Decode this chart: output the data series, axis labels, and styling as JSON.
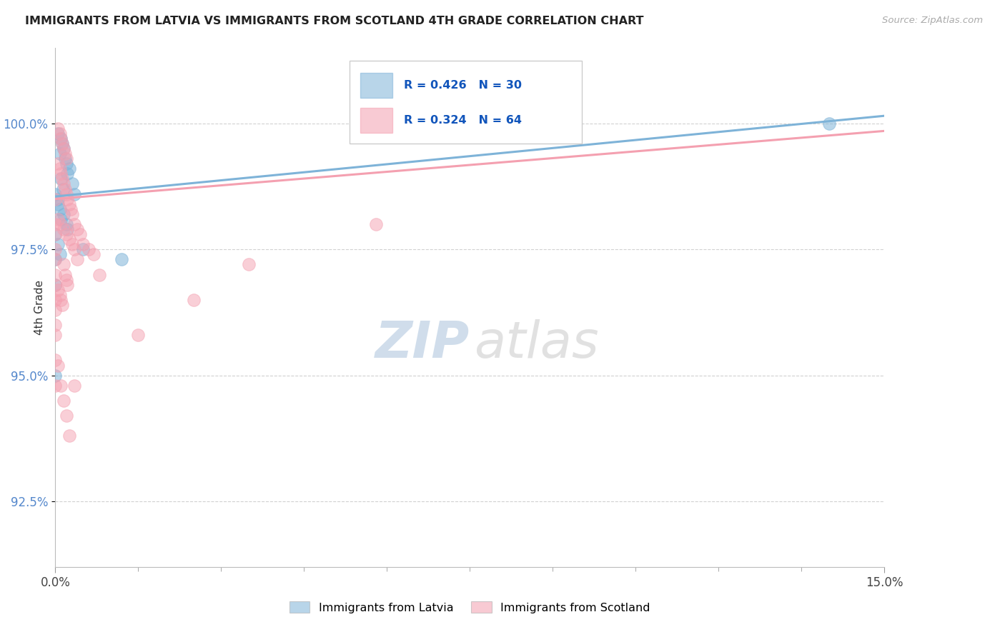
{
  "title": "IMMIGRANTS FROM LATVIA VS IMMIGRANTS FROM SCOTLAND 4TH GRADE CORRELATION CHART",
  "source": "Source: ZipAtlas.com",
  "ylabel": "4th Grade",
  "xlim": [
    0.0,
    15.0
  ],
  "ylim": [
    91.2,
    101.5
  ],
  "yticks": [
    92.5,
    95.0,
    97.5,
    100.0
  ],
  "xtick_labels": [
    "0.0%",
    "15.0%"
  ],
  "ytick_labels": [
    "92.5%",
    "95.0%",
    "97.5%",
    "100.0%"
  ],
  "latvia_color": "#7EB3D8",
  "scotland_color": "#F4A0B0",
  "latvia_R": 0.426,
  "latvia_N": 30,
  "scotland_R": 0.324,
  "scotland_N": 64,
  "legend_label_latvia": "Immigrants from Latvia",
  "legend_label_scotland": "Immigrants from Scotland",
  "watermark_zip": "ZIP",
  "watermark_atlas": "atlas",
  "latvia_points": [
    [
      0.05,
      99.8
    ],
    [
      0.1,
      99.7
    ],
    [
      0.12,
      99.6
    ],
    [
      0.15,
      99.5
    ],
    [
      0.08,
      99.4
    ],
    [
      0.18,
      99.3
    ],
    [
      0.2,
      99.2
    ],
    [
      0.22,
      99.0
    ],
    [
      0.1,
      98.9
    ],
    [
      0.14,
      98.7
    ],
    [
      0.25,
      99.1
    ],
    [
      0.3,
      98.8
    ],
    [
      0.05,
      98.5
    ],
    [
      0.08,
      98.3
    ],
    [
      0.15,
      98.2
    ],
    [
      0.2,
      98.0
    ],
    [
      0.0,
      98.6
    ],
    [
      0.05,
      98.4
    ],
    [
      0.1,
      98.1
    ],
    [
      0.22,
      97.9
    ],
    [
      0.35,
      98.6
    ],
    [
      0.0,
      97.8
    ],
    [
      0.05,
      97.6
    ],
    [
      0.08,
      97.4
    ],
    [
      0.0,
      97.3
    ],
    [
      0.5,
      97.5
    ],
    [
      1.2,
      97.3
    ],
    [
      0.0,
      96.8
    ],
    [
      0.0,
      95.0
    ],
    [
      14.0,
      100.0
    ]
  ],
  "scotland_points": [
    [
      0.05,
      99.9
    ],
    [
      0.08,
      99.8
    ],
    [
      0.1,
      99.7
    ],
    [
      0.12,
      99.6
    ],
    [
      0.15,
      99.5
    ],
    [
      0.18,
      99.4
    ],
    [
      0.2,
      99.3
    ],
    [
      0.05,
      99.2
    ],
    [
      0.08,
      99.1
    ],
    [
      0.1,
      99.0
    ],
    [
      0.12,
      98.9
    ],
    [
      0.15,
      98.8
    ],
    [
      0.18,
      98.7
    ],
    [
      0.2,
      98.6
    ],
    [
      0.22,
      98.5
    ],
    [
      0.25,
      98.4
    ],
    [
      0.28,
      98.3
    ],
    [
      0.3,
      98.2
    ],
    [
      0.05,
      98.1
    ],
    [
      0.1,
      98.0
    ],
    [
      0.15,
      97.9
    ],
    [
      0.2,
      97.8
    ],
    [
      0.25,
      97.7
    ],
    [
      0.35,
      98.0
    ],
    [
      0.4,
      97.9
    ],
    [
      0.45,
      97.8
    ],
    [
      0.5,
      97.6
    ],
    [
      0.6,
      97.5
    ],
    [
      0.7,
      97.4
    ],
    [
      0.3,
      97.6
    ],
    [
      0.35,
      97.5
    ],
    [
      0.4,
      97.3
    ],
    [
      0.15,
      97.2
    ],
    [
      0.18,
      97.0
    ],
    [
      0.2,
      96.9
    ],
    [
      0.22,
      96.8
    ],
    [
      0.05,
      96.7
    ],
    [
      0.08,
      96.6
    ],
    [
      0.1,
      96.5
    ],
    [
      0.12,
      96.4
    ],
    [
      0.0,
      97.5
    ],
    [
      0.0,
      97.0
    ],
    [
      0.0,
      96.5
    ],
    [
      0.0,
      96.0
    ],
    [
      0.0,
      98.5
    ],
    [
      0.0,
      98.0
    ],
    [
      0.0,
      97.8
    ],
    [
      0.0,
      97.3
    ],
    [
      0.0,
      96.8
    ],
    [
      0.0,
      96.3
    ],
    [
      0.0,
      95.8
    ],
    [
      0.0,
      95.3
    ],
    [
      0.0,
      94.8
    ],
    [
      0.05,
      95.2
    ],
    [
      0.1,
      94.8
    ],
    [
      0.15,
      94.5
    ],
    [
      0.2,
      94.2
    ],
    [
      3.5,
      97.2
    ],
    [
      5.8,
      98.0
    ],
    [
      0.25,
      93.8
    ],
    [
      0.35,
      94.8
    ],
    [
      1.5,
      95.8
    ],
    [
      2.5,
      96.5
    ],
    [
      0.8,
      97.0
    ]
  ]
}
